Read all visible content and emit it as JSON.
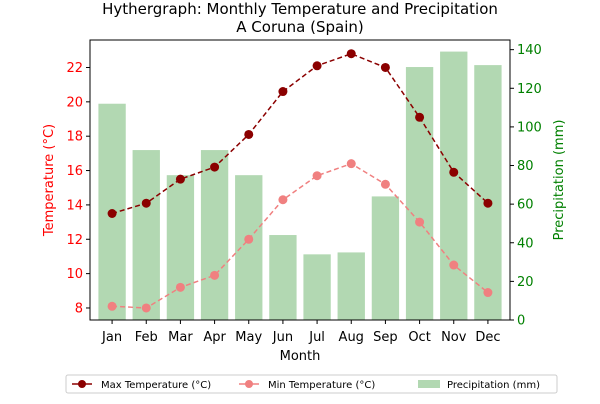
{
  "chart_data": {
    "type": "bar+line",
    "title": "Hythergraph: Monthly Temperature and Precipitation",
    "subtitle": "A Coruna (Spain)",
    "xlabel": "Month",
    "ylabel_left": "Temperature (°C)",
    "ylabel_right": "Precipitation (mm)",
    "categories": [
      "Jan",
      "Feb",
      "Mar",
      "Apr",
      "May",
      "Jun",
      "Jul",
      "Aug",
      "Sep",
      "Oct",
      "Nov",
      "Dec"
    ],
    "ylim_left": [
      7.3,
      23.6
    ],
    "ylim_right": [
      0,
      145
    ],
    "yticks_left": [
      8,
      10,
      12,
      14,
      16,
      18,
      20,
      22
    ],
    "yticks_right": [
      0,
      20,
      40,
      60,
      80,
      100,
      120,
      140
    ],
    "series": [
      {
        "name": "Max Temperature (°C)",
        "axis": "left",
        "style": "line",
        "color": "#8b0000",
        "values": [
          13.5,
          14.1,
          15.5,
          16.2,
          18.1,
          20.6,
          22.1,
          22.8,
          22.0,
          19.1,
          15.9,
          14.1
        ]
      },
      {
        "name": "Min Temperature (°C)",
        "axis": "left",
        "style": "line",
        "color": "#f08080",
        "values": [
          8.1,
          8.0,
          9.2,
          9.9,
          12.0,
          14.3,
          15.7,
          16.4,
          15.2,
          13.0,
          10.5,
          8.9
        ]
      },
      {
        "name": "Precipitation (mm)",
        "axis": "right",
        "style": "bar",
        "color": "#b2d8b2",
        "values": [
          112,
          88,
          75,
          88,
          75,
          44,
          34,
          35,
          64,
          131,
          139,
          132
        ]
      }
    ],
    "legend_position": "bottom-center",
    "left_axis_color": "#ff0000",
    "right_axis_color": "#008000",
    "grid": false
  }
}
